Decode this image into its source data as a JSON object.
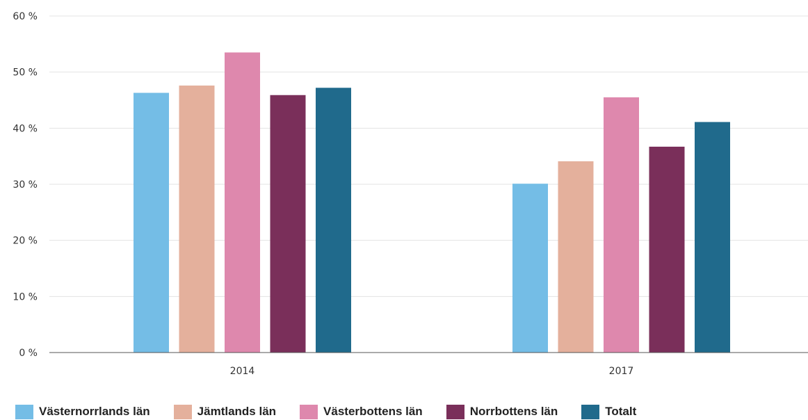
{
  "chart_data": {
    "type": "bar",
    "title": "",
    "xlabel": "",
    "ylabel": "",
    "categories": [
      "2014",
      "2017"
    ],
    "yticks": [
      "0 %",
      "10 %",
      "20 %",
      "30 %",
      "40 %",
      "50 %",
      "60 %"
    ],
    "ylim": [
      0,
      60
    ],
    "grid": true,
    "legend_position": "bottom",
    "series": [
      {
        "name": "Västernorrlands län",
        "color": "#74bde6",
        "values": [
          46.3,
          30.1
        ]
      },
      {
        "name": "Jämtlands län",
        "color": "#e4b09c",
        "values": [
          47.6,
          34.1
        ]
      },
      {
        "name": "Västerbottens län",
        "color": "#de88ad",
        "values": [
          53.5,
          45.5
        ]
      },
      {
        "name": "Norrbottens län",
        "color": "#7a2f5a",
        "values": [
          45.9,
          36.7
        ]
      },
      {
        "name": "Totalt",
        "color": "#206a8c",
        "values": [
          47.2,
          41.1
        ]
      }
    ]
  }
}
